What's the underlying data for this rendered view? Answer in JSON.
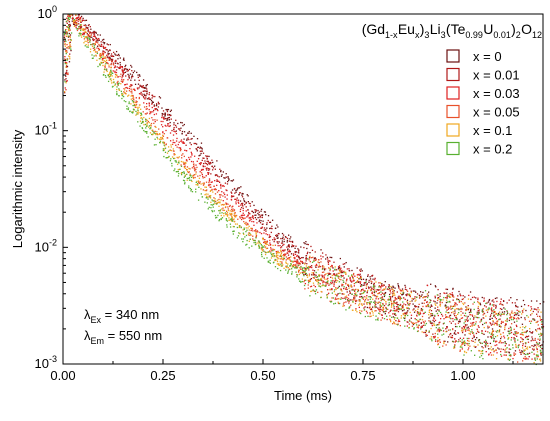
{
  "chart_data": {
    "type": "scatter",
    "xlabel": "Time (ms)",
    "ylabel": "Logarithmic intensity",
    "xlim": [
      0,
      1.2
    ],
    "ylim": [
      0.001,
      1
    ],
    "yscale": "log",
    "x_ticks": [
      "0.00",
      "0.25",
      "0.50",
      "0.75",
      "1.00"
    ],
    "y_ticks": [
      {
        "base": "10",
        "exp": "0"
      },
      {
        "base": "10",
        "exp": "-1"
      },
      {
        "base": "10",
        "exp": "-2"
      },
      {
        "base": "10",
        "exp": "-3"
      }
    ],
    "legend": {
      "title_parts": [
        {
          "t": "(Gd"
        },
        {
          "t": "1-x",
          "sub": true
        },
        {
          "t": "Eu"
        },
        {
          "t": "x",
          "sub": true
        },
        {
          "t": ")"
        },
        {
          "t": "3",
          "sub": true
        },
        {
          "t": "Li"
        },
        {
          "t": "3",
          "sub": true
        },
        {
          "t": "(Te"
        },
        {
          "t": "0.99",
          "sub": true
        },
        {
          "t": "U"
        },
        {
          "t": "0.01",
          "sub": true
        },
        {
          "t": ")"
        },
        {
          "t": "2",
          "sub": true
        },
        {
          "t": "O"
        },
        {
          "t": "12",
          "sub": true
        }
      ],
      "placement": "top-right"
    },
    "series": [
      {
        "name": "x = 0",
        "color": "#6b1010",
        "x": [
          0.02,
          0.05,
          0.1,
          0.15,
          0.2,
          0.25,
          0.3,
          0.35,
          0.4,
          0.45,
          0.5,
          0.55,
          0.6,
          0.7,
          0.8,
          0.9,
          1.0,
          1.1,
          1.2
        ],
        "y": [
          1.0,
          0.82,
          0.55,
          0.37,
          0.24,
          0.155,
          0.1,
          0.065,
          0.042,
          0.027,
          0.018,
          0.012,
          0.0085,
          0.0055,
          0.0038,
          0.003,
          0.0025,
          0.0022,
          0.002
        ]
      },
      {
        "name": "x = 0.01",
        "color": "#b01818",
        "x": [
          0.02,
          0.05,
          0.1,
          0.15,
          0.2,
          0.25,
          0.3,
          0.35,
          0.4,
          0.45,
          0.5,
          0.55,
          0.6,
          0.7,
          0.8,
          0.9,
          1.0,
          1.1,
          1.2
        ],
        "y": [
          1.0,
          0.8,
          0.52,
          0.34,
          0.22,
          0.14,
          0.09,
          0.058,
          0.037,
          0.024,
          0.016,
          0.011,
          0.008,
          0.0052,
          0.0037,
          0.0029,
          0.0024,
          0.0021,
          0.0019
        ]
      },
      {
        "name": "x = 0.03",
        "color": "#e02020",
        "x": [
          0.02,
          0.05,
          0.1,
          0.15,
          0.2,
          0.25,
          0.3,
          0.35,
          0.4,
          0.45,
          0.5,
          0.55,
          0.6,
          0.7,
          0.8,
          0.9,
          1.0,
          1.1,
          1.2
        ],
        "y": [
          1.0,
          0.76,
          0.47,
          0.29,
          0.18,
          0.112,
          0.07,
          0.045,
          0.029,
          0.019,
          0.013,
          0.0092,
          0.007,
          0.0048,
          0.0035,
          0.0028,
          0.0023,
          0.002,
          0.0018
        ]
      },
      {
        "name": "x = 0.05",
        "color": "#e8502a",
        "x": [
          0.02,
          0.05,
          0.1,
          0.15,
          0.2,
          0.25,
          0.3,
          0.35,
          0.4,
          0.45,
          0.5,
          0.55,
          0.6,
          0.7,
          0.8,
          0.9,
          1.0,
          1.1,
          1.2
        ],
        "y": [
          1.0,
          0.72,
          0.42,
          0.25,
          0.15,
          0.09,
          0.056,
          0.036,
          0.024,
          0.016,
          0.011,
          0.008,
          0.0063,
          0.0045,
          0.0034,
          0.0027,
          0.0022,
          0.0019,
          0.0017
        ]
      },
      {
        "name": "x = 0.1",
        "color": "#f0a820",
        "x": [
          0.02,
          0.05,
          0.1,
          0.15,
          0.2,
          0.25,
          0.3,
          0.35,
          0.4,
          0.45,
          0.5,
          0.55,
          0.6,
          0.7,
          0.8,
          0.9,
          1.0,
          1.1,
          1.2
        ],
        "y": [
          1.0,
          0.68,
          0.38,
          0.22,
          0.13,
          0.078,
          0.048,
          0.031,
          0.021,
          0.0145,
          0.0105,
          0.0078,
          0.0062,
          0.0045,
          0.0034,
          0.0027,
          0.0022,
          0.0019,
          0.0017
        ]
      },
      {
        "name": "x = 0.2",
        "color": "#58b030",
        "x": [
          0.02,
          0.05,
          0.1,
          0.15,
          0.2,
          0.25,
          0.3,
          0.35,
          0.4,
          0.45,
          0.5,
          0.55,
          0.6,
          0.7,
          0.8,
          0.9,
          1.0,
          1.1,
          1.2
        ],
        "y": [
          1.0,
          0.65,
          0.35,
          0.2,
          0.115,
          0.068,
          0.042,
          0.027,
          0.018,
          0.0128,
          0.0095,
          0.0072,
          0.0058,
          0.0043,
          0.0033,
          0.0026,
          0.0021,
          0.0018,
          0.0016
        ]
      }
    ],
    "annotations": [
      {
        "sym": "λ",
        "sub": "Ex",
        "text": " = 340 nm"
      },
      {
        "sym": "λ",
        "sub": "Em",
        "text": " = 550 nm"
      }
    ]
  }
}
